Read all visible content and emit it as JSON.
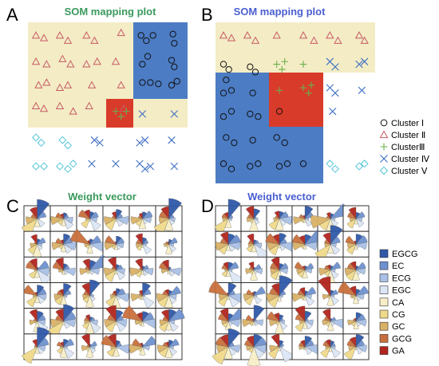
{
  "panels": [
    {
      "label": "A",
      "title": "SOM mapping plot",
      "title_color": "#3a9a5c"
    },
    {
      "label": "B",
      "title": "SOM mapping plot",
      "title_color": "#4a5fd0"
    },
    {
      "label": "C",
      "title": "Weight vector",
      "title_color": "#3a9a5c"
    },
    {
      "label": "D",
      "title": "Weight vector",
      "title_color": "#4a5fd0"
    }
  ],
  "chart_data": [
    {
      "type": "scatter",
      "panel": "A",
      "title": "SOM mapping plot",
      "xlim": [
        0,
        6
      ],
      "ylim": [
        0,
        6
      ],
      "grid": false,
      "regions": [
        {
          "cluster": "II",
          "color": "#f3ecc5",
          "cells": "upper-left"
        },
        {
          "cluster": "I",
          "color": "#4c7cc4",
          "cells": "upper-right"
        },
        {
          "cluster": "III",
          "color": "#d93b2a",
          "cells": "center"
        }
      ],
      "series": [
        {
          "name": "Cluster I",
          "marker": "circle",
          "color": "#111111",
          "points": [
            [
              4.25,
              5.5
            ],
            [
              4.45,
              5.3
            ],
            [
              4.7,
              5.5
            ],
            [
              5.45,
              5.55
            ],
            [
              5.5,
              5.2
            ],
            [
              4.5,
              4.7
            ],
            [
              4.3,
              4.4
            ],
            [
              5.4,
              4.55
            ],
            [
              5.5,
              4.3
            ],
            [
              4.3,
              3.7
            ],
            [
              4.6,
              3.7
            ],
            [
              4.9,
              3.65
            ],
            [
              5.4,
              3.6
            ],
            [
              5.6,
              3.75
            ]
          ]
        },
        {
          "name": "Cluster II",
          "marker": "triangle",
          "color": "#c85a64",
          "points": [
            [
              0.3,
              5.5
            ],
            [
              0.6,
              5.4
            ],
            [
              1.2,
              5.5
            ],
            [
              1.5,
              5.3
            ],
            [
              2.2,
              5.5
            ],
            [
              2.5,
              5.3
            ],
            [
              3.5,
              5.6
            ],
            [
              0.3,
              4.5
            ],
            [
              0.7,
              4.4
            ],
            [
              1.3,
              4.6
            ],
            [
              1.6,
              4.4
            ],
            [
              2.2,
              4.4
            ],
            [
              2.6,
              4.5
            ],
            [
              3.3,
              4.5
            ],
            [
              0.4,
              3.6
            ],
            [
              0.7,
              3.7
            ],
            [
              1.2,
              3.5
            ],
            [
              1.5,
              3.6
            ],
            [
              2.4,
              3.6
            ],
            [
              3.5,
              3.6
            ],
            [
              0.3,
              2.8
            ],
            [
              0.6,
              2.7
            ],
            [
              1.2,
              2.8
            ],
            [
              1.7,
              2.6
            ],
            [
              2.3,
              2.8
            ],
            [
              3.6,
              2.7
            ]
          ]
        },
        {
          "name": "Cluster III",
          "marker": "plus",
          "color": "#6ab04c",
          "points": [
            [
              3.3,
              2.6
            ],
            [
              3.5,
              2.4
            ],
            [
              3.7,
              2.6
            ]
          ]
        },
        {
          "name": "Cluster IV",
          "marker": "x",
          "color": "#3f6fc4",
          "points": [
            [
              4.3,
              2.5
            ],
            [
              5.5,
              2.5
            ],
            [
              2.5,
              1.5
            ],
            [
              2.7,
              1.4
            ],
            [
              4.2,
              1.4
            ],
            [
              4.4,
              1.5
            ],
            [
              5.4,
              1.5
            ],
            [
              2.4,
              0.6
            ],
            [
              3.3,
              0.6
            ],
            [
              4.2,
              0.6
            ],
            [
              4.4,
              0.4
            ],
            [
              4.6,
              0.5
            ],
            [
              5.5,
              0.5
            ]
          ]
        },
        {
          "name": "Cluster V",
          "marker": "diamond",
          "color": "#55c6d8",
          "points": [
            [
              0.3,
              1.6
            ],
            [
              0.5,
              1.4
            ],
            [
              1.3,
              1.5
            ],
            [
              1.5,
              1.3
            ],
            [
              0.3,
              0.5
            ],
            [
              0.6,
              0.5
            ],
            [
              1.2,
              0.5
            ],
            [
              1.5,
              0.4
            ],
            [
              1.7,
              0.6
            ]
          ]
        }
      ]
    },
    {
      "type": "scatter",
      "panel": "B",
      "title": "SOM mapping plot",
      "xlim": [
        0,
        6
      ],
      "ylim": [
        0,
        6
      ],
      "grid": false,
      "legend": "right",
      "legend_entries": [
        "Cluster Ⅰ",
        "Cluster Ⅱ",
        "ClusterⅢ",
        "Cluster Ⅳ",
        "Cluster Ⅴ"
      ],
      "regions": [
        {
          "cluster": "II",
          "color": "#f3ecc5",
          "cells": "top band"
        },
        {
          "cluster": "I",
          "color": "#4c7cc4",
          "cells": "left block"
        },
        {
          "cluster": "III",
          "color": "#d93b2a",
          "cells": "center"
        }
      ],
      "series": [
        {
          "name": "Cluster Ⅰ",
          "marker": "circle",
          "color": "#111111",
          "points": [
            [
              0.3,
              4.4
            ],
            [
              0.5,
              4.2
            ],
            [
              0.4,
              3.8
            ],
            [
              1.3,
              4.3
            ],
            [
              1.5,
              4.1
            ],
            [
              0.3,
              3.3
            ],
            [
              0.6,
              3.4
            ],
            [
              1.4,
              3.3
            ],
            [
              0.3,
              2.4
            ],
            [
              0.6,
              2.6
            ],
            [
              1.3,
              2.5
            ],
            [
              1.6,
              2.4
            ],
            [
              2.4,
              2.6
            ],
            [
              0.4,
              1.6
            ],
            [
              0.7,
              1.4
            ],
            [
              1.4,
              1.5
            ],
            [
              2.3,
              1.6
            ],
            [
              2.6,
              1.4
            ],
            [
              0.3,
              0.6
            ],
            [
              0.6,
              0.4
            ],
            [
              1.3,
              0.5
            ],
            [
              1.6,
              0.6
            ],
            [
              2.4,
              0.5
            ],
            [
              2.7,
              0.6
            ],
            [
              3.3,
              0.6
            ]
          ]
        },
        {
          "name": "Cluster Ⅱ",
          "marker": "triangle",
          "color": "#c85a64",
          "points": [
            [
              0.3,
              5.5
            ],
            [
              0.6,
              5.4
            ],
            [
              1.2,
              5.5
            ],
            [
              1.5,
              5.3
            ],
            [
              2.3,
              5.5
            ],
            [
              3.3,
              5.5
            ],
            [
              3.7,
              5.3
            ],
            [
              4.3,
              5.5
            ],
            [
              4.6,
              5.3
            ],
            [
              5.4,
              5.5
            ],
            [
              5.6,
              5.3
            ]
          ]
        },
        {
          "name": "ClusterⅢ",
          "marker": "plus",
          "color": "#6ab04c",
          "points": [
            [
              2.3,
              4.4
            ],
            [
              2.5,
              4.2
            ],
            [
              2.6,
              4.5
            ],
            [
              3.3,
              4.4
            ],
            [
              2.4,
              3.4
            ],
            [
              3.3,
              3.5
            ],
            [
              3.5,
              3.3
            ],
            [
              3.6,
              3.6
            ]
          ]
        },
        {
          "name": "Cluster Ⅳ",
          "marker": "x",
          "color": "#3f6fc4",
          "points": [
            [
              4.3,
              4.5
            ],
            [
              4.5,
              4.3
            ],
            [
              5.4,
              4.4
            ],
            [
              5.6,
              4.5
            ],
            [
              4.3,
              3.5
            ],
            [
              4.5,
              3.3
            ],
            [
              5.5,
              3.4
            ],
            [
              4.4,
              2.6
            ]
          ]
        },
        {
          "name": "Cluster Ⅴ",
          "marker": "diamond",
          "color": "#55c6d8",
          "points": [
            [
              4.3,
              0.6
            ],
            [
              4.5,
              0.4
            ],
            [
              5.4,
              0.5
            ],
            [
              5.6,
              0.6
            ]
          ]
        }
      ]
    },
    {
      "type": "rose-grid",
      "panel": "C",
      "title": "Weight vector",
      "rows": 6,
      "cols": 6,
      "variables": [
        "EGCG",
        "EC",
        "ECG",
        "EGC",
        "CA",
        "CG",
        "GC",
        "GCG",
        "GA"
      ]
    },
    {
      "type": "rose-grid",
      "panel": "D",
      "title": "Weight vector",
      "rows": 6,
      "cols": 6,
      "variables": [
        "EGCG",
        "EC",
        "ECG",
        "EGC",
        "CA",
        "CG",
        "GC",
        "GCG",
        "GA"
      ],
      "legend": "right",
      "legend_entries": [
        {
          "label": "EGCG",
          "color": "#2f59a8"
        },
        {
          "label": "EC",
          "color": "#6e91cf"
        },
        {
          "label": "ECG",
          "color": "#a9c1e6"
        },
        {
          "label": "EGC",
          "color": "#dbe6f4"
        },
        {
          "label": "CA",
          "color": "#f7eec6"
        },
        {
          "label": "CG",
          "color": "#efd98a"
        },
        {
          "label": "GC",
          "color": "#d9b166"
        },
        {
          "label": "GCG",
          "color": "#c8703c"
        },
        {
          "label": "GA",
          "color": "#b1251d"
        }
      ]
    }
  ]
}
